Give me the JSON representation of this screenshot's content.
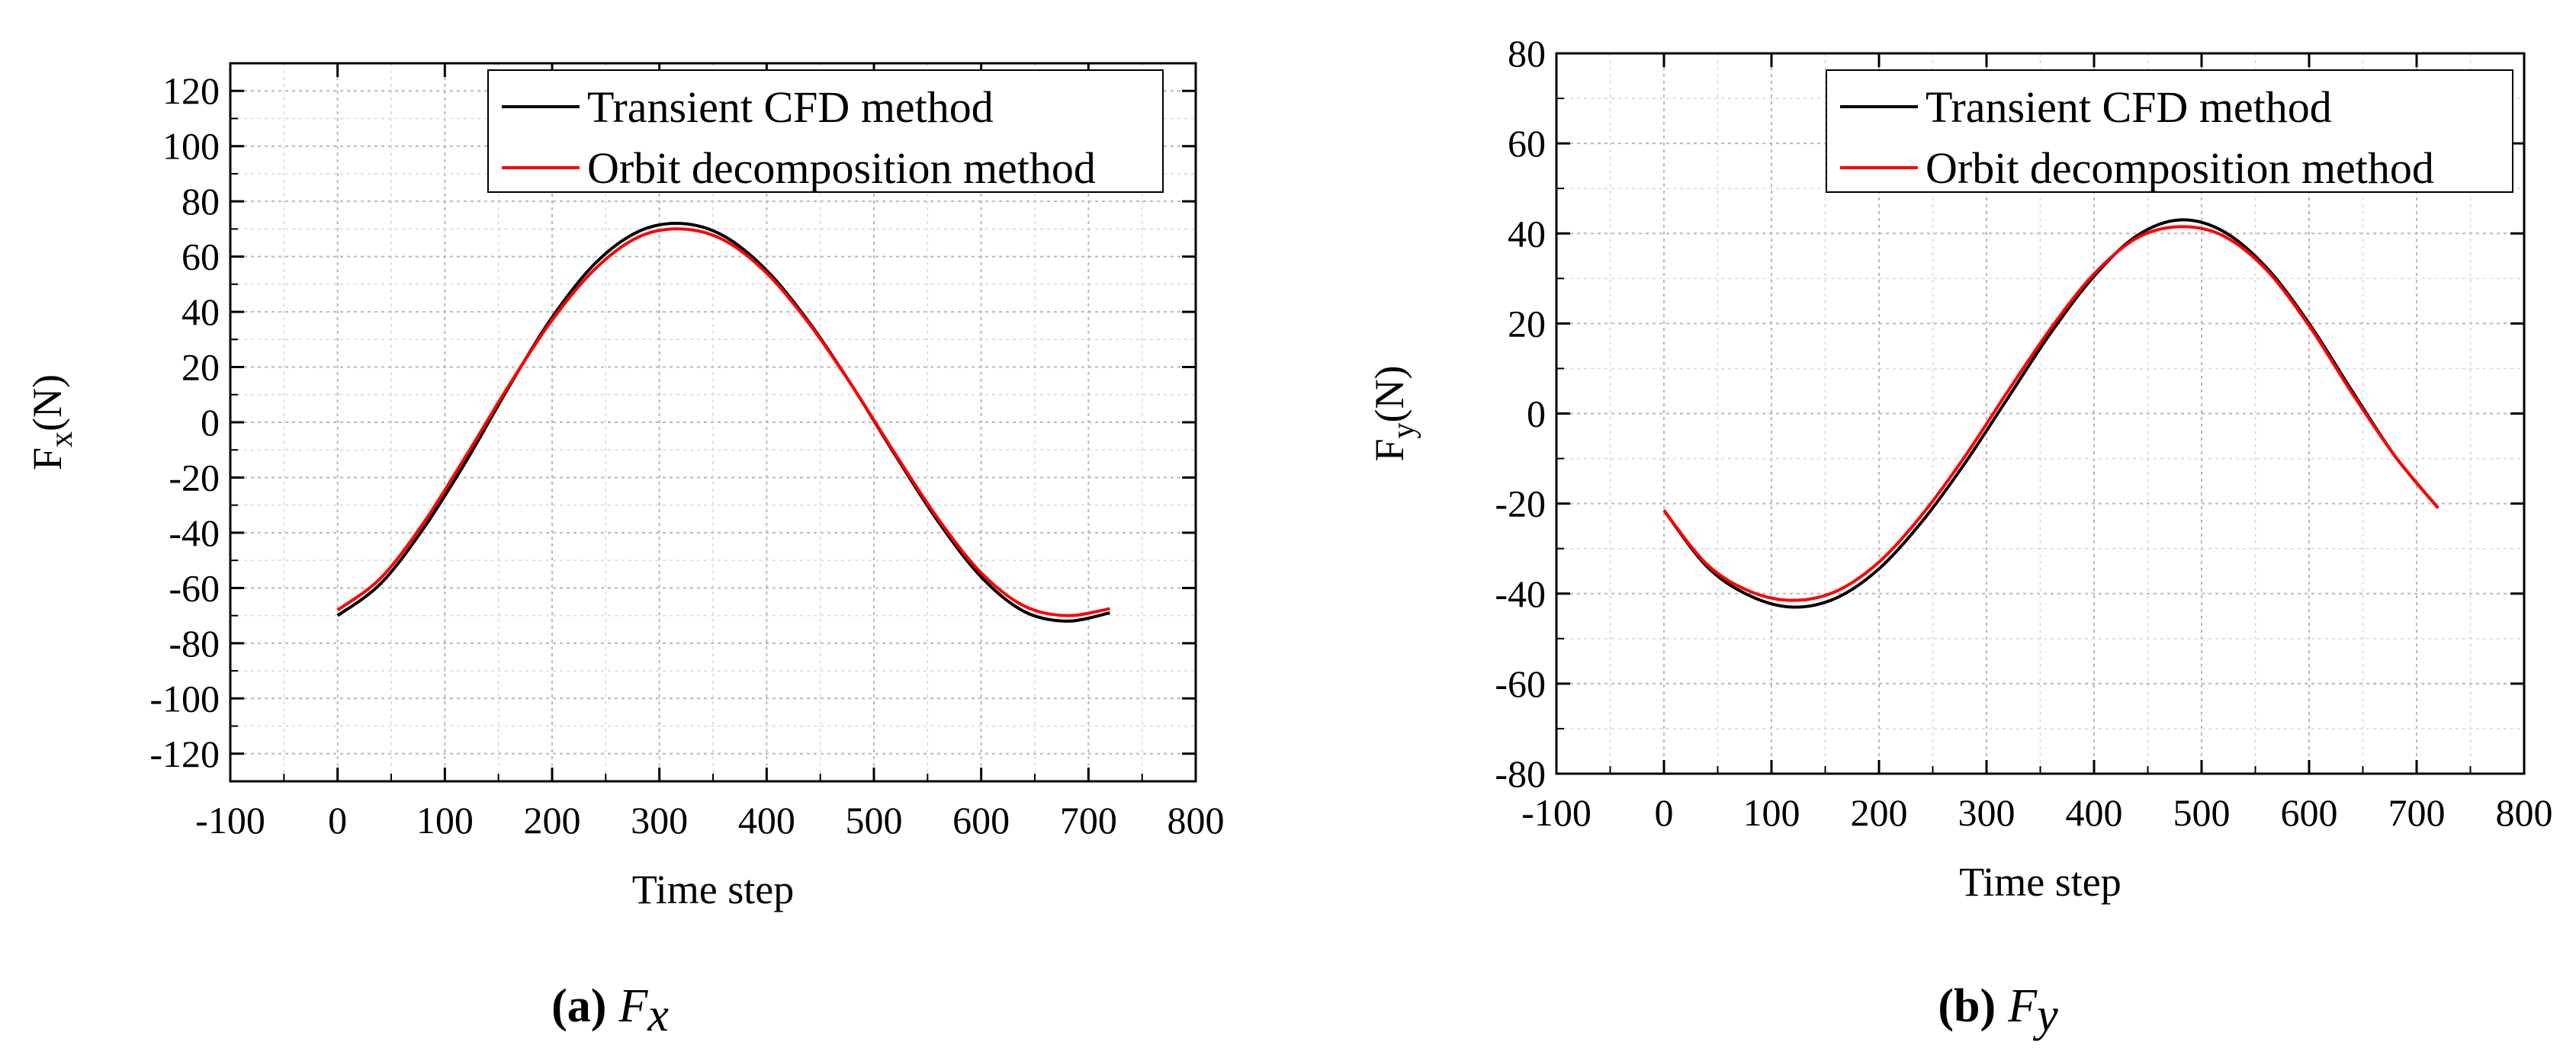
{
  "chart_data": [
    {
      "id": "a",
      "type": "line",
      "panel_label": "(a)",
      "panel_symbol": "F",
      "panel_symbol_sub": "x",
      "xlabel": "Time step",
      "ylabel_main": "F",
      "ylabel_sub": "x",
      "ylabel_unit": "(N)",
      "xlim": [
        -100,
        800
      ],
      "ylim": [
        -130,
        130
      ],
      "xticks": [
        -100,
        0,
        100,
        200,
        300,
        400,
        500,
        600,
        700,
        800
      ],
      "yticks": [
        -120,
        -100,
        -80,
        -60,
        -40,
        -20,
        0,
        20,
        40,
        60,
        80,
        100,
        120
      ],
      "xtick_labels": [
        "-100",
        "0",
        "100",
        "200",
        "300",
        "400",
        "500",
        "600",
        "700",
        "800"
      ],
      "ytick_labels": [
        "-120",
        "-100",
        "-80",
        "-60",
        "-40",
        "-20",
        "0",
        "20",
        "40",
        "60",
        "80",
        "100",
        "120"
      ],
      "grid": true,
      "legend_position": "top-right",
      "x": [
        0,
        40,
        80,
        120,
        160,
        200,
        240,
        280,
        320,
        360,
        400,
        440,
        480,
        520,
        560,
        600,
        640,
        680,
        720
      ],
      "series": [
        {
          "name": "Transient CFD method",
          "color": "#000000",
          "values": [
            -70.0,
            -58.5,
            -38.5,
            -14.0,
            13.0,
            38.0,
            57.5,
            69.0,
            72.0,
            67.5,
            55.0,
            36.0,
            13.0,
            -12.0,
            -36.0,
            -56.0,
            -68.5,
            -72.0,
            -69.0
          ]
        },
        {
          "name": "Orbit decomposition method",
          "color": "#ff0000",
          "values": [
            -68.0,
            -56.5,
            -36.5,
            -12.0,
            13.5,
            37.0,
            55.5,
            67.0,
            70.0,
            66.0,
            54.0,
            35.5,
            13.0,
            -11.5,
            -35.0,
            -54.5,
            -66.5,
            -70.0,
            -67.5
          ]
        }
      ]
    },
    {
      "id": "b",
      "type": "line",
      "panel_label": "(b)",
      "panel_symbol": "F",
      "panel_symbol_sub": "y",
      "xlabel": "Time step",
      "ylabel_main": "F",
      "ylabel_sub": "y",
      "ylabel_unit": "(N)",
      "xlim": [
        -100,
        800
      ],
      "ylim": [
        -80,
        80
      ],
      "xticks": [
        -100,
        0,
        100,
        200,
        300,
        400,
        500,
        600,
        700,
        800
      ],
      "yticks": [
        -80,
        -60,
        -40,
        -20,
        0,
        20,
        40,
        60,
        80
      ],
      "xtick_labels": [
        "-100",
        "0",
        "100",
        "200",
        "300",
        "400",
        "500",
        "600",
        "700",
        "800"
      ],
      "ytick_labels": [
        "-80",
        "-60",
        "-40",
        "-20",
        "0",
        "20",
        "40",
        "60",
        "80"
      ],
      "grid": true,
      "legend_position": "top-right",
      "x": [
        0,
        40,
        80,
        120,
        160,
        200,
        240,
        280,
        320,
        360,
        400,
        440,
        480,
        520,
        560,
        600,
        640,
        680,
        720
      ],
      "series": [
        {
          "name": "Transient CFD method",
          "color": "#000000",
          "values": [
            -21.5,
            -34.0,
            -40.5,
            -43.0,
            -41.0,
            -34.5,
            -24.0,
            -11.0,
            3.5,
            18.0,
            30.5,
            39.5,
            43.0,
            40.5,
            32.5,
            20.0,
            5.0,
            -9.5,
            -21.0
          ]
        },
        {
          "name": "Orbit decomposition method",
          "color": "#ff0000",
          "values": [
            -21.5,
            -33.5,
            -39.5,
            -41.5,
            -39.5,
            -33.0,
            -22.5,
            -9.5,
            5.0,
            19.0,
            31.0,
            39.0,
            41.5,
            39.5,
            32.0,
            19.5,
            4.5,
            -9.5,
            -21.0
          ]
        }
      ]
    }
  ]
}
